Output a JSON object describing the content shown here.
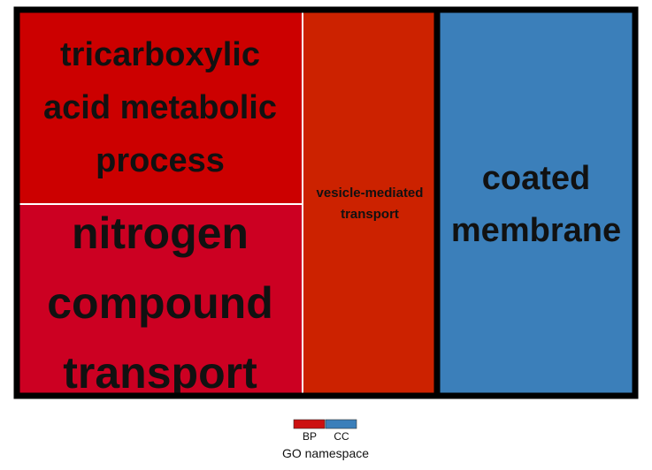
{
  "chart_data": {
    "type": "treemap",
    "tiles": [
      {
        "label": "tricarboxylic acid metabolic process",
        "lines": [
          "tricarboxylic",
          "acid metabolic",
          "process"
        ],
        "namespace": "BP",
        "color": "#cc0000"
      },
      {
        "label": "nitrogen compound transport",
        "lines": [
          "nitrogen",
          "compound",
          "transport"
        ],
        "namespace": "BP",
        "color": "#cc0022"
      },
      {
        "label": "vesicle-mediated transport",
        "lines": [
          "vesicle-mediated",
          "transport"
        ],
        "namespace": "BP",
        "color": "#cc2200"
      },
      {
        "label": "coated membrane",
        "lines": [
          "coated",
          "membrane"
        ],
        "namespace": "CC",
        "color": "#3b7fba"
      }
    ],
    "groups": [
      {
        "name": "BP",
        "color": "#cc1111"
      },
      {
        "name": "CC",
        "color": "#3b7fba"
      }
    ],
    "legend": {
      "title": "GO namespace",
      "entries": [
        {
          "label": "BP",
          "color": "#cc1111"
        },
        {
          "label": "CC",
          "color": "#3b7fba"
        }
      ]
    }
  }
}
